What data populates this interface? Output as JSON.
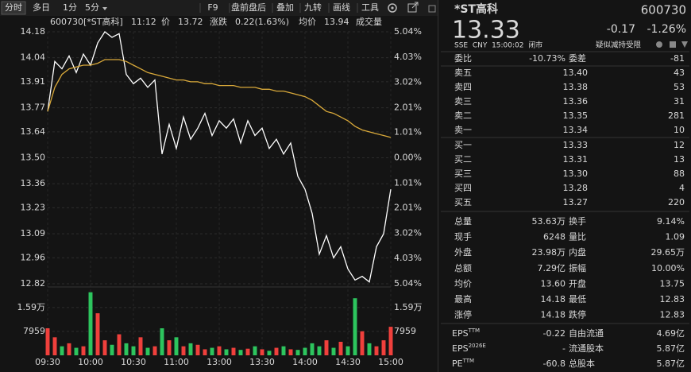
{
  "toolbar": {
    "tabs": [
      "分时",
      "多日",
      "1分",
      "5分"
    ],
    "active": 0,
    "tools": [
      "F9",
      "盘前盘后",
      "叠加",
      "九转",
      "画线",
      "工具"
    ]
  },
  "chart_data": {
    "type": "line",
    "header": {
      "code": "600730[*ST高科]",
      "time": "11:12",
      "price_label": "价",
      "price": 13.72,
      "change_label": "涨跌",
      "change": "0.22(1.63%)",
      "avg_label": "均价",
      "avg": 13.94,
      "volume_label": "成交量"
    },
    "categories": [
      "09:30",
      "09:35",
      "09:40",
      "09:45",
      "09:50",
      "09:55",
      "10:00",
      "10:05",
      "10:10",
      "10:15",
      "10:20",
      "10:25",
      "10:30",
      "10:35",
      "10:40",
      "10:45",
      "10:50",
      "10:55",
      "11:00",
      "11:05",
      "11:10",
      "11:15",
      "11:20",
      "11:25",
      "13:00",
      "13:05",
      "13:10",
      "13:15",
      "13:20",
      "13:25",
      "13:30",
      "13:35",
      "13:40",
      "13:45",
      "13:50",
      "13:55",
      "14:00",
      "14:05",
      "14:10",
      "14:15",
      "14:20",
      "14:25",
      "14:30",
      "14:35",
      "14:40",
      "14:45",
      "14:50",
      "14:55",
      "15:00"
    ],
    "xticks": [
      "09:30",
      "10:00",
      "10:30",
      "11:00",
      "13:00",
      "13:30",
      "14:00",
      "14:30",
      "15:00"
    ],
    "ylim": [
      12.82,
      14.18
    ],
    "yticks": [
      14.18,
      14.04,
      13.91,
      13.77,
      13.64,
      {
        "value": 13.5,
        "label": "13.50"
      },
      13.36,
      13.23,
      13.09,
      12.96,
      12.82
    ],
    "y2lim": [
      -5.04,
      5.04
    ],
    "y2ticks": [
      {
        "value": 5.04,
        "label": "5.04%"
      },
      {
        "value": 4.03,
        "label": "4.03%"
      },
      {
        "value": 3.02,
        "label": "3.02%"
      },
      {
        "value": 2.01,
        "label": "2.01%"
      },
      {
        "value": 1.01,
        "label": "1.01%"
      },
      {
        "value": 0,
        "label": "0.00%"
      },
      {
        "value": -1.01,
        "label": "1.01%"
      },
      {
        "value": -2.01,
        "label": "2.01%"
      },
      {
        "value": -3.02,
        "label": "3.02%"
      },
      {
        "value": -4.03,
        "label": "4.03%"
      },
      {
        "value": -5.04,
        "label": "5.04%"
      }
    ],
    "grid": true,
    "series": [
      {
        "color": "#ffffff",
        "values": [
          13.75,
          14.02,
          13.98,
          14.05,
          13.96,
          14.06,
          14.0,
          14.12,
          14.18,
          14.15,
          14.17,
          13.95,
          13.9,
          13.93,
          13.88,
          13.92,
          13.52,
          13.68,
          13.55,
          13.72,
          13.6,
          13.66,
          13.74,
          13.62,
          13.7,
          13.66,
          13.71,
          13.58,
          13.7,
          13.62,
          13.66,
          13.55,
          13.6,
          13.52,
          13.58,
          13.4,
          13.33,
          13.2,
          12.98,
          13.08,
          12.96,
          13.02,
          12.9,
          12.84,
          12.86,
          12.83,
          13.02,
          13.09,
          13.33
        ]
      },
      {
        "color": "#d9a93a",
        "values": [
          13.75,
          13.88,
          13.95,
          13.98,
          13.99,
          14.0,
          14.0,
          14.01,
          14.03,
          14.03,
          14.03,
          14.02,
          14.0,
          13.98,
          13.96,
          13.95,
          13.94,
          13.93,
          13.92,
          13.92,
          13.91,
          13.91,
          13.9,
          13.9,
          13.89,
          13.89,
          13.89,
          13.88,
          13.88,
          13.88,
          13.87,
          13.87,
          13.86,
          13.86,
          13.85,
          13.84,
          13.83,
          13.81,
          13.78,
          13.75,
          13.74,
          13.72,
          13.7,
          13.67,
          13.65,
          13.64,
          13.63,
          13.62,
          13.61
        ]
      }
    ],
    "volume": {
      "ylim": [
        0,
        21700
      ],
      "yticks": [
        {
          "value": 15900,
          "label": "1.59万"
        },
        7959
      ],
      "up_color": "#f0403c",
      "down_color": "#2dc55e",
      "values": [
        9000,
        6000,
        3000,
        4000,
        2500,
        3000,
        21000,
        14000,
        5000,
        3500,
        7000,
        4000,
        3000,
        6000,
        2500,
        3000,
        9000,
        5000,
        6000,
        3000,
        4000,
        3500,
        2000,
        2500,
        3000,
        2000,
        2500,
        1800,
        2200,
        3000,
        2000,
        1500,
        2500,
        3000,
        2000,
        1800,
        2500,
        4000,
        3000,
        5000,
        2500,
        4500,
        3000,
        19000,
        8000,
        4000,
        3000,
        5000,
        9500
      ]
    }
  },
  "quote": {
    "name": "*ST高科",
    "code": "600730",
    "price": 13.33,
    "change": -0.17,
    "change_pct": "-1.26%",
    "info": "SSE  CNY  15:00:02  闭市",
    "tag": "疑似减持受限",
    "ratio": {
      "k1": "委比",
      "v1": "-10.73%",
      "k2": "委差",
      "v2": -81
    },
    "asks": [
      {
        "label": "卖五",
        "price": "13.40",
        "volume": 43
      },
      {
        "label": "卖四",
        "price": 13.38,
        "volume": 53
      },
      {
        "label": "卖三",
        "price": 13.36,
        "volume": 31
      },
      {
        "label": "卖二",
        "price": 13.35,
        "volume": 281
      },
      {
        "label": "卖一",
        "price": 13.34,
        "volume": 10
      }
    ],
    "bids": [
      {
        "label": "买一",
        "price": 13.33,
        "volume": 12
      },
      {
        "label": "买二",
        "price": 13.31,
        "volume": 13
      },
      {
        "label": "买三",
        "price": "13.30",
        "volume": 88
      },
      {
        "label": "买四",
        "price": 13.28,
        "volume": 4
      },
      {
        "label": "买五",
        "price": 13.27,
        "volume": 220
      }
    ],
    "stats": [
      {
        "k1": "总量",
        "v1": "53.63万",
        "k2": "换手",
        "v2": "9.14%"
      },
      {
        "k1": "现手",
        "v1": 6248,
        "k2": "量比",
        "v2": 1.09
      },
      {
        "k1": "外盘",
        "v1": "23.98万",
        "c1": "#f0403c",
        "k2": "内盘",
        "v2": "29.65万",
        "c2": "#2dc55e"
      },
      {
        "k1": "总额",
        "v1": "7.29亿",
        "k2": "振幅",
        "v2": "10.00%"
      },
      {
        "k1": "均价",
        "v1": "13.60",
        "c1": "#f0403c",
        "k2": "开盘",
        "v2": 13.75,
        "c2": "#f0403c"
      },
      {
        "k1": "最高",
        "v1": 14.18,
        "c1": "#f0403c",
        "k2": "最低",
        "v2": 12.83,
        "c2": "#2dc55e"
      },
      {
        "k1": "涨停",
        "v1": 14.18,
        "c1": "#f0403c",
        "k2": "跌停",
        "v2": 12.83,
        "c2": "#2dc55e"
      }
    ],
    "fundamentals": [
      {
        "k1": "EPS",
        "s1": "TTM",
        "v1": -0.22,
        "k2": "自由流通",
        "v2": "4.69亿"
      },
      {
        "k1": "EPS",
        "s1": "2026E",
        "v1": "-",
        "k2": "流通股本",
        "v2": "5.87亿"
      },
      {
        "k1": "PE",
        "s1": "TTM",
        "v1": -60.8,
        "k2": "总股本",
        "v2": "5.87亿"
      }
    ]
  }
}
